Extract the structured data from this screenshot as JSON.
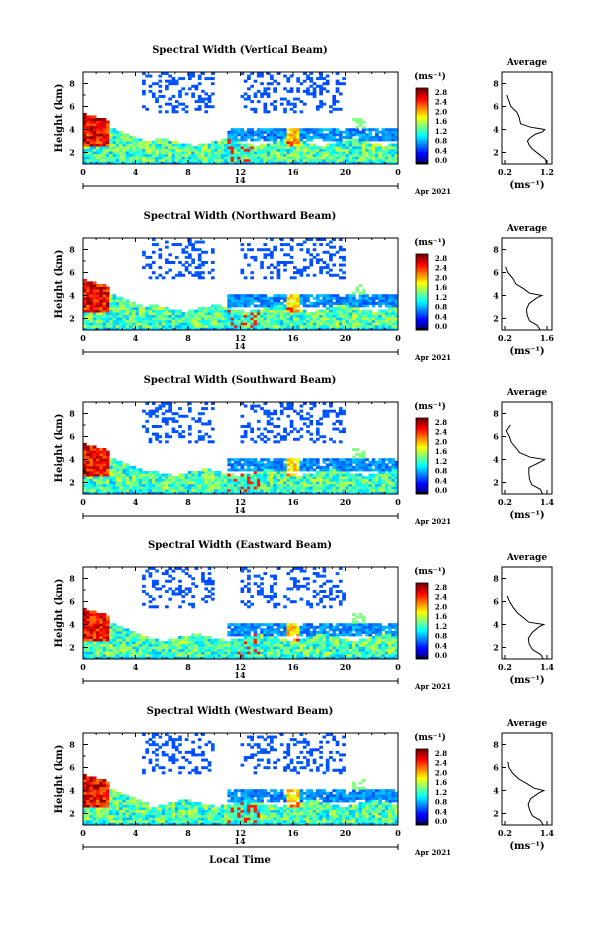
{
  "chart_data": [
    {
      "type": "heatmap",
      "title": "Spectral Width (Vertical Beam)",
      "ylabel": "Height (km)",
      "xticks": [
        "0",
        "4",
        "8",
        "12",
        "16",
        "20",
        "0"
      ],
      "yticks": [
        "2",
        "4",
        "6",
        "8"
      ],
      "date_label": "14",
      "month_label": "Apr 2021",
      "colorbar": {
        "unit": "(ms⁻¹)",
        "ticks": [
          "2.8",
          "2.4",
          "2.0",
          "1.6",
          "1.2",
          "0.8",
          "0.4",
          "0.0"
        ],
        "range": [
          0,
          3.0
        ]
      },
      "average": {
        "title": "Average",
        "unit": "(ms⁻¹)",
        "xticks": [
          "0.2",
          "1.2"
        ],
        "xlim": [
          0.2,
          1.2
        ],
        "yticks": [
          "2",
          "4",
          "6",
          "8"
        ]
      },
      "average_profile": [
        [
          1.2,
          1.0
        ],
        [
          1.15,
          1.4
        ],
        [
          1.0,
          1.8
        ],
        [
          0.85,
          2.3
        ],
        [
          0.8,
          2.6
        ],
        [
          0.75,
          3.0
        ],
        [
          0.8,
          3.3
        ],
        [
          0.95,
          3.6
        ],
        [
          1.1,
          3.8
        ],
        [
          1.15,
          4.0
        ],
        [
          0.8,
          4.2
        ],
        [
          0.6,
          4.5
        ],
        [
          0.55,
          5.0
        ],
        [
          0.5,
          5.5
        ],
        [
          0.35,
          6.0
        ],
        [
          0.3,
          6.5
        ],
        [
          0.25,
          7.0
        ]
      ]
    },
    {
      "type": "heatmap",
      "title": "Spectral Width (Northward Beam)",
      "ylabel": "Height (km)",
      "xticks": [
        "0",
        "4",
        "8",
        "12",
        "16",
        "20",
        "0"
      ],
      "yticks": [
        "2",
        "4",
        "6",
        "8"
      ],
      "date_label": "14",
      "month_label": "Apr 2021",
      "colorbar": {
        "unit": "(ms⁻¹)",
        "ticks": [
          "2.8",
          "2.4",
          "2.0",
          "1.6",
          "1.2",
          "0.8",
          "0.4",
          "0.0"
        ],
        "range": [
          0,
          3.0
        ]
      },
      "average": {
        "title": "Average",
        "unit": "(ms⁻¹)",
        "xticks": [
          "0.2",
          "1.6"
        ],
        "xlim": [
          0.2,
          1.6
        ],
        "yticks": [
          "2",
          "4",
          "6",
          "8"
        ]
      },
      "average_profile": [
        [
          1.4,
          1.0
        ],
        [
          1.3,
          1.4
        ],
        [
          1.0,
          1.8
        ],
        [
          0.95,
          2.3
        ],
        [
          0.9,
          2.8
        ],
        [
          1.0,
          3.3
        ],
        [
          1.3,
          3.8
        ],
        [
          1.4,
          4.0
        ],
        [
          1.0,
          4.2
        ],
        [
          0.8,
          4.6
        ],
        [
          0.6,
          5.0
        ],
        [
          0.45,
          5.5
        ],
        [
          0.3,
          6.0
        ],
        [
          0.25,
          6.5
        ]
      ]
    },
    {
      "type": "heatmap",
      "title": "Spectral Width (Southward Beam)",
      "ylabel": "Height (km)",
      "xticks": [
        "0",
        "4",
        "8",
        "12",
        "16",
        "20",
        "0"
      ],
      "yticks": [
        "2",
        "4",
        "6",
        "8"
      ],
      "date_label": "14",
      "month_label": "Apr 2021",
      "colorbar": {
        "unit": "(ms⁻¹)",
        "ticks": [
          "2.8",
          "2.4",
          "2.0",
          "1.6",
          "1.2",
          "0.8",
          "0.4",
          "0.0"
        ],
        "range": [
          0,
          3.0
        ]
      },
      "average": {
        "title": "Average",
        "unit": "(ms⁻¹)",
        "xticks": [
          "0.2",
          "1.4"
        ],
        "xlim": [
          0.2,
          1.4
        ],
        "yticks": [
          "2",
          "4",
          "6",
          "8"
        ]
      },
      "average_profile": [
        [
          1.3,
          1.0
        ],
        [
          1.25,
          1.4
        ],
        [
          1.0,
          1.8
        ],
        [
          0.9,
          2.3
        ],
        [
          0.85,
          2.8
        ],
        [
          0.9,
          3.3
        ],
        [
          1.2,
          3.8
        ],
        [
          1.3,
          4.0
        ],
        [
          0.9,
          4.2
        ],
        [
          0.6,
          4.6
        ],
        [
          0.5,
          5.0
        ],
        [
          0.4,
          5.5
        ],
        [
          0.3,
          6.0
        ],
        [
          0.25,
          6.5
        ],
        [
          0.35,
          7.0
        ]
      ]
    },
    {
      "type": "heatmap",
      "title": "Spectral Width (Eastward Beam)",
      "ylabel": "Height (km)",
      "xticks": [
        "0",
        "4",
        "8",
        "12",
        "16",
        "20",
        "0"
      ],
      "yticks": [
        "2",
        "4",
        "6",
        "8"
      ],
      "date_label": "14",
      "month_label": "Apr 2021",
      "colorbar": {
        "unit": "(ms⁻¹)",
        "ticks": [
          "2.8",
          "2.4",
          "2.0",
          "1.6",
          "1.2",
          "0.8",
          "0.4",
          "0.0"
        ],
        "range": [
          0,
          3.0
        ]
      },
      "average": {
        "title": "Average",
        "unit": "(ms⁻¹)",
        "xticks": [
          "0.2",
          "1.4"
        ],
        "xlim": [
          0.2,
          1.4
        ],
        "yticks": [
          "2",
          "4",
          "6",
          "8"
        ]
      },
      "average_profile": [
        [
          1.3,
          1.0
        ],
        [
          1.2,
          1.4
        ],
        [
          1.0,
          1.8
        ],
        [
          0.9,
          2.3
        ],
        [
          0.85,
          2.8
        ],
        [
          0.95,
          3.3
        ],
        [
          1.2,
          3.8
        ],
        [
          1.3,
          4.0
        ],
        [
          0.9,
          4.2
        ],
        [
          0.7,
          4.6
        ],
        [
          0.55,
          5.0
        ],
        [
          0.4,
          5.5
        ],
        [
          0.3,
          6.0
        ],
        [
          0.25,
          6.5
        ]
      ]
    },
    {
      "type": "heatmap",
      "title": "Spectral Width (Westward Beam)",
      "ylabel": "Height (km)",
      "xlabel": "Local Time",
      "xticks": [
        "0",
        "4",
        "8",
        "12",
        "16",
        "20",
        "0"
      ],
      "yticks": [
        "2",
        "4",
        "6",
        "8"
      ],
      "date_label": "14",
      "month_label": "Apr 2021",
      "colorbar": {
        "unit": "(ms⁻¹)",
        "ticks": [
          "2.8",
          "2.4",
          "2.0",
          "1.6",
          "1.2",
          "0.8",
          "0.4",
          "0.0"
        ],
        "range": [
          0,
          3.0
        ]
      },
      "average": {
        "title": "Average",
        "unit": "(ms⁻¹)",
        "xticks": [
          "0.2",
          "1.4"
        ],
        "xlim": [
          0.2,
          1.4
        ],
        "yticks": [
          "2",
          "4",
          "6",
          "8"
        ]
      },
      "average_profile": [
        [
          1.3,
          1.0
        ],
        [
          1.2,
          1.4
        ],
        [
          1.0,
          1.8
        ],
        [
          0.9,
          2.3
        ],
        [
          0.85,
          2.8
        ],
        [
          0.95,
          3.3
        ],
        [
          1.2,
          3.8
        ],
        [
          1.3,
          4.0
        ],
        [
          1.0,
          4.2
        ],
        [
          0.8,
          4.6
        ],
        [
          0.6,
          5.0
        ],
        [
          0.4,
          5.5
        ],
        [
          0.3,
          6.0
        ],
        [
          0.25,
          6.5
        ]
      ]
    }
  ]
}
